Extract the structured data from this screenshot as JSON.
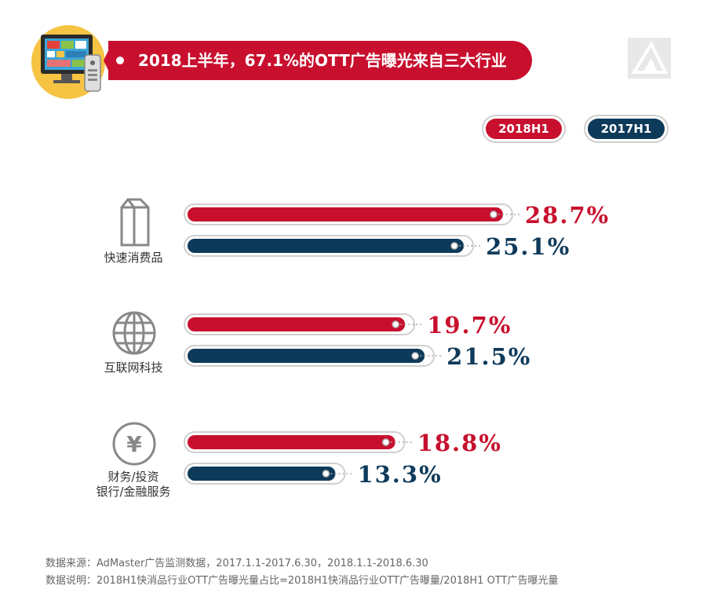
{
  "header": {
    "title": "2018上半年，67.1%的OTT广告曝光来自三大行业"
  },
  "legend": [
    {
      "label": "2018H1",
      "color": "#c8102e"
    },
    {
      "label": "2017H1",
      "color": "#0e3a5a"
    }
  ],
  "chart_data": {
    "type": "bar",
    "orientation": "horizontal",
    "title": "2018上半年，67.1%的OTT广告曝光来自三大行业",
    "categories": [
      {
        "name": "快速消费品",
        "lines": [
          "快速消费品"
        ],
        "icon": "milk-carton-icon"
      },
      {
        "name": "互联网科技",
        "lines": [
          "互联网科技"
        ],
        "icon": "globe-icon"
      },
      {
        "name": "财务/投资银行/金融服务",
        "lines": [
          "财务/投资",
          "银行/金融服务"
        ],
        "icon": "yen-icon"
      }
    ],
    "series": [
      {
        "name": "2018H1",
        "values": [
          28.7,
          19.7,
          18.8
        ],
        "labels": [
          "28.7%",
          "19.7%",
          "18.8%"
        ],
        "color": "#c8102e"
      },
      {
        "name": "2017H1",
        "values": [
          25.1,
          21.5,
          13.3
        ],
        "labels": [
          "25.1%",
          "21.5%",
          "13.3%"
        ],
        "color": "#0e3a5a"
      }
    ],
    "xlim": [
      0,
      30
    ],
    "grid": false,
    "legend_position": "top-right"
  },
  "footnotes": [
    "数据来源：AdMaster广告监测数据，2017.1.1-2017.6.30，2018.1.1-2018.6.30",
    "数据说明：2018H1快消品行业OTT广告曝光量占比=2018H1快消品行业OTT广告曝量/2018H1 OTT广告曝光量"
  ]
}
